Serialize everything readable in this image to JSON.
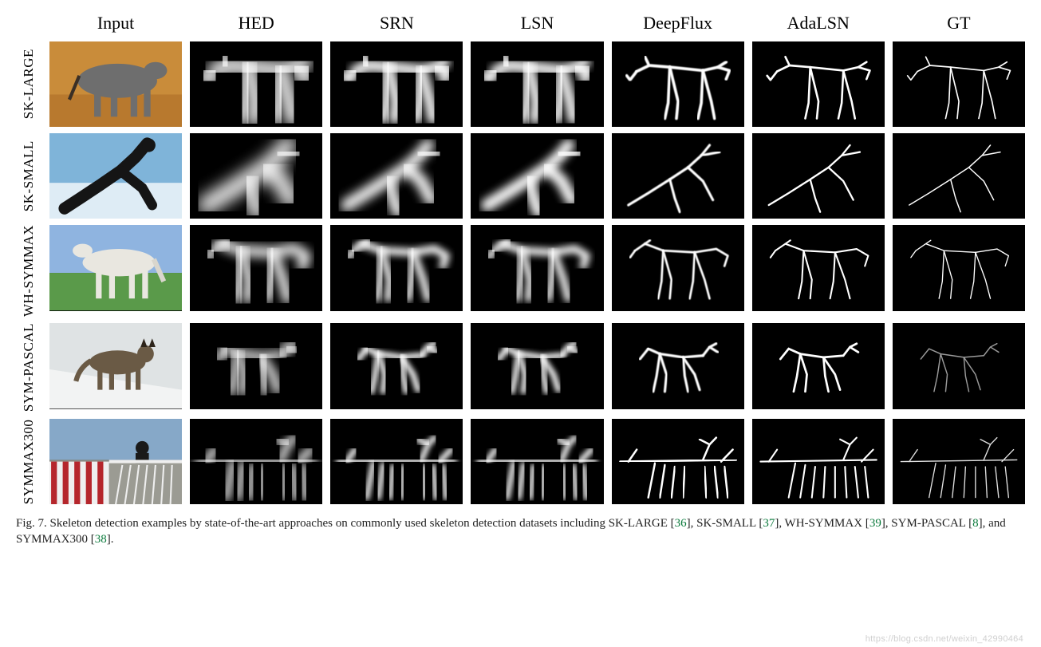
{
  "figure": {
    "columns": [
      "Input",
      "HED",
      "SRN",
      "LSN",
      "DeepFlux",
      "AdaLSN",
      "GT"
    ],
    "rows": [
      {
        "label": "SK-LARGE",
        "input": {
          "type": "photo-horse-brown",
          "palette": {
            "bg": "#c98c3a",
            "fg": "#6e6e6e",
            "accent": "#3a2f25"
          }
        },
        "skeleton_base": "horse_standing",
        "styles": {
          "HED": {
            "stroke": "#ffffff",
            "width": 20,
            "blur": 8,
            "opacity": 0.92
          },
          "SRN": {
            "stroke": "#ffffff",
            "width": 14,
            "blur": 5,
            "opacity": 0.95
          },
          "LSN": {
            "stroke": "#ffffff",
            "width": 14,
            "blur": 5,
            "opacity": 0.95
          },
          "DeepFlux": {
            "stroke": "#ffffff",
            "width": 3.5,
            "blur": 0.5,
            "opacity": 1
          },
          "AdaLSN": {
            "stroke": "#ffffff",
            "width": 2.5,
            "blur": 0,
            "opacity": 1
          },
          "GT": {
            "stroke": "#ffffff",
            "width": 1.6,
            "blur": 0,
            "opacity": 1
          }
        }
      },
      {
        "label": "SK-SMALL",
        "input": {
          "type": "photo-surfer",
          "palette": {
            "bg": "#7fb4d9",
            "fg": "#151515",
            "accent": "#e9f2f7"
          }
        },
        "skeleton_base": "surfer_crouch",
        "styles": {
          "HED": {
            "stroke": "#ffffff",
            "width": 22,
            "blur": 9,
            "opacity": 0.9
          },
          "SRN": {
            "stroke": "#ffffff",
            "width": 15,
            "blur": 6,
            "opacity": 0.95
          },
          "LSN": {
            "stroke": "#ffffff",
            "width": 15,
            "blur": 5,
            "opacity": 0.95
          },
          "DeepFlux": {
            "stroke": "#ffffff",
            "width": 3,
            "blur": 0.5,
            "opacity": 1
          },
          "AdaLSN": {
            "stroke": "#ffffff",
            "width": 2.2,
            "blur": 0,
            "opacity": 1
          },
          "GT": {
            "stroke": "#ffffff",
            "width": 1.4,
            "blur": 0,
            "opacity": 1
          }
        }
      },
      {
        "label": "WH-SYMMAX",
        "input": {
          "type": "photo-horse-white",
          "palette": {
            "bg": "#5a9a4a",
            "fg": "#e9e7e0",
            "accent": "#8fb4e0"
          }
        },
        "skeleton_base": "horse_standing2",
        "styles": {
          "HED": {
            "stroke": "#ffffff",
            "width": 13,
            "blur": 6,
            "opacity": 0.9
          },
          "SRN": {
            "stroke": "#ffffff",
            "width": 9,
            "blur": 4,
            "opacity": 0.95
          },
          "LSN": {
            "stroke": "#ffffff",
            "width": 9,
            "blur": 4,
            "opacity": 0.95
          },
          "DeepFlux": {
            "stroke": "#ffffff",
            "width": 2.6,
            "blur": 0.4,
            "opacity": 1
          },
          "AdaLSN": {
            "stroke": "#ffffff",
            "width": 2,
            "blur": 0,
            "opacity": 1
          },
          "GT": {
            "stroke": "#ffffff",
            "width": 1.3,
            "blur": 0,
            "opacity": 1
          }
        }
      },
      {
        "label": "SYM-PASCAL",
        "input": {
          "type": "photo-cat",
          "palette": {
            "bg": "#dfe3e4",
            "fg": "#6a5a45",
            "accent": "#2d241a"
          }
        },
        "skeleton_base": "cat_walk",
        "styles": {
          "HED": {
            "stroke": "#ffffff",
            "width": 12,
            "blur": 6,
            "opacity": 0.85
          },
          "SRN": {
            "stroke": "#ffffff",
            "width": 7,
            "blur": 3,
            "opacity": 0.95
          },
          "LSN": {
            "stroke": "#ffffff",
            "width": 7,
            "blur": 3,
            "opacity": 0.95
          },
          "DeepFlux": {
            "stroke": "#ffffff",
            "width": 3,
            "blur": 0.4,
            "opacity": 1
          },
          "AdaLSN": {
            "stroke": "#ffffff",
            "width": 2.6,
            "blur": 0,
            "opacity": 1
          },
          "GT": {
            "stroke": "#9a9a9a",
            "width": 1.4,
            "blur": 0,
            "opacity": 1
          }
        }
      },
      {
        "label": "SYMMAX300",
        "input": {
          "type": "photo-track",
          "palette": {
            "bg": "#86a8c8",
            "fg": "#8a8a82",
            "accent": "#b5262c"
          }
        },
        "skeleton_base": "track_scene",
        "styles": {
          "HED": {
            "stroke": "#ffffff",
            "width": 10,
            "blur": 5,
            "opacity": 0.85
          },
          "SRN": {
            "stroke": "#ffffff",
            "width": 7,
            "blur": 3,
            "opacity": 0.92
          },
          "LSN": {
            "stroke": "#ffffff",
            "width": 7,
            "blur": 3,
            "opacity": 0.92
          },
          "DeepFlux": {
            "stroke": "#ffffff",
            "width": 2.4,
            "blur": 0.3,
            "opacity": 1
          },
          "AdaLSN": {
            "stroke": "#ffffff",
            "width": 2,
            "blur": 0,
            "opacity": 1
          },
          "GT": {
            "stroke": "#e0e0e0",
            "width": 1.3,
            "blur": 0,
            "opacity": 1
          }
        }
      }
    ],
    "skeletons": {
      "horse_standing": [
        "M30 35 L45 28 L70 30 L110 34 L128 30 L138 24",
        "M128 30 L142 34 L138 44",
        "M45 28 L40 18",
        "M70 30 L68 72 L64 90",
        "M70 30 L80 70 L78 90",
        "M110 34 L108 72 L104 90",
        "M110 34 L120 70 L124 90",
        "M30 35 L22 45 L18 40"
      ],
      "surfer_crouch": [
        "M118 14 L108 26 L92 40 L70 54 L44 70 L20 84",
        "M92 40 L110 56 L122 78",
        "M70 54 L76 76 L82 92",
        "M108 26 L130 22"
      ],
      "horse_standing2": [
        "M28 30 L40 22 L46 18",
        "M40 22 L62 30 L100 32 L126 28 L140 36 L136 48",
        "M62 30 L60 66 L56 86",
        "M62 30 L72 64 L70 86",
        "M100 32 L98 66 L94 86",
        "M100 32 L112 64 L118 86",
        "M28 30 L22 38"
      ],
      "cat_walk": [
        "M44 30 L58 36 L86 40 L110 38",
        "M110 38 L118 28 L126 24",
        "M118 28 L128 34",
        "M58 36 L54 62 L50 80",
        "M58 36 L66 60 L64 80",
        "M86 40 L88 62 L92 80",
        "M86 40 L100 60 L106 78",
        "M44 30 L34 42"
      ],
      "track_scene": [
        "M10 50 L150 48",
        "M44 92 L52 52",
        "M58 92 L64 54",
        "M72 92 L76 56",
        "M86 92 L88 56",
        "M100 92 L100 56",
        "M114 92 L112 56",
        "M128 92 L124 56",
        "M140 92 L136 56",
        "M110 48 L118 30 L126 22",
        "M118 30 L106 24",
        "M132 50 L146 36",
        "M20 50 L30 36"
      ]
    },
    "caption": {
      "prefix": "Fig. 7.  Skeleton detection examples by state-of-the-art approaches on commonly used skeleton detection datasets including ",
      "items": [
        {
          "name": "SK-LARGE",
          "ref": "36"
        },
        {
          "name": "SK-SMALL",
          "ref": "37"
        },
        {
          "name": "WH-SYMMAX",
          "ref": "39"
        },
        {
          "name": "SYM-PASCAL",
          "ref": "8"
        },
        {
          "name": "SYMMAX300",
          "ref": "38"
        }
      ],
      "join": ", ",
      "last_join": ", and ",
      "suffix": "."
    },
    "watermark": "https://blog.csdn.net/weixin_42990464"
  }
}
